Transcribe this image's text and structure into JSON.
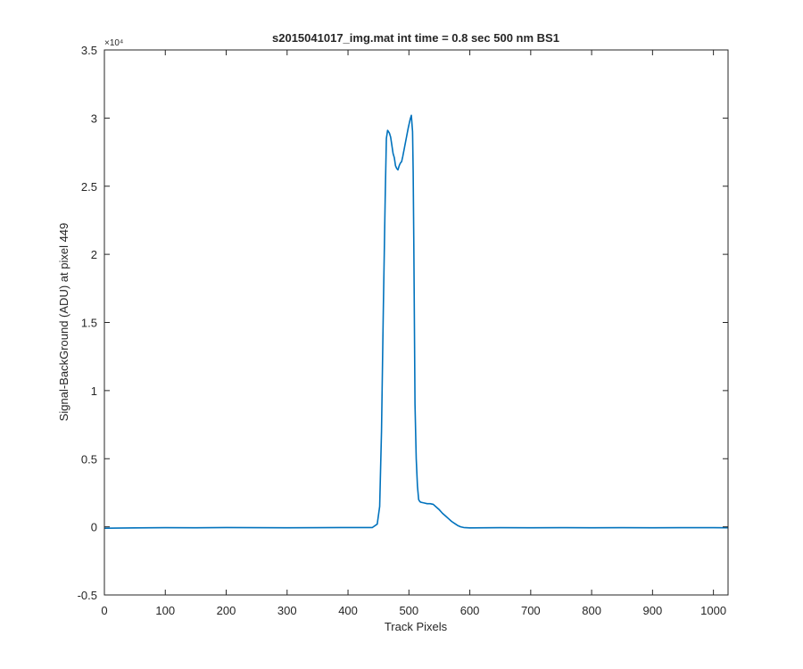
{
  "chart_data": {
    "type": "line",
    "title": "s2015041017_img.mat int time = 0.8 sec  500 nm BS1",
    "xlabel": "Track Pixels",
    "ylabel": "Signal-BackGround (ADU) at pixel 449",
    "y_exponent_label": "×10⁴",
    "xlim": [
      0,
      1024
    ],
    "ylim": [
      -5000,
      35000
    ],
    "x_ticks": [
      0,
      100,
      200,
      300,
      400,
      500,
      600,
      700,
      800,
      900,
      1000
    ],
    "y_ticks": [
      -5000,
      0,
      5000,
      10000,
      15000,
      20000,
      25000,
      30000,
      35000
    ],
    "y_tick_labels": [
      "-0.5",
      "0",
      "0.5",
      "1",
      "1.5",
      "2",
      "2.5",
      "3",
      "3.5"
    ],
    "grid": false,
    "line_color": "#0072BD",
    "series": [
      {
        "x": [
          0,
          50,
          100,
          150,
          200,
          250,
          300,
          350,
          400,
          440,
          448,
          452,
          455,
          458,
          461,
          463,
          465,
          468,
          470,
          472,
          474,
          476,
          478,
          480,
          482,
          484,
          486,
          488,
          490,
          493,
          496,
          499,
          502,
          504,
          506,
          507,
          508,
          509,
          510,
          512,
          514,
          516,
          518,
          520,
          525,
          530,
          535,
          540,
          545,
          550,
          555,
          560,
          565,
          570,
          575,
          580,
          585,
          590,
          600,
          650,
          700,
          750,
          800,
          850,
          900,
          950,
          1000,
          1024
        ],
        "y": [
          -100,
          -80,
          -60,
          -70,
          -50,
          -60,
          -70,
          -60,
          -50,
          -50,
          200,
          1500,
          7000,
          16000,
          24000,
          28500,
          29100,
          28900,
          28600,
          28000,
          27400,
          27100,
          26500,
          26300,
          26200,
          26500,
          26700,
          26800,
          27200,
          27900,
          28600,
          29300,
          29900,
          30200,
          29000,
          26000,
          21000,
          15000,
          9000,
          5000,
          3000,
          2000,
          1850,
          1800,
          1750,
          1700,
          1700,
          1650,
          1450,
          1250,
          1000,
          800,
          600,
          400,
          250,
          100,
          0,
          -50,
          -80,
          -60,
          -70,
          -60,
          -70,
          -60,
          -70,
          -60,
          -60,
          -70
        ]
      }
    ]
  }
}
